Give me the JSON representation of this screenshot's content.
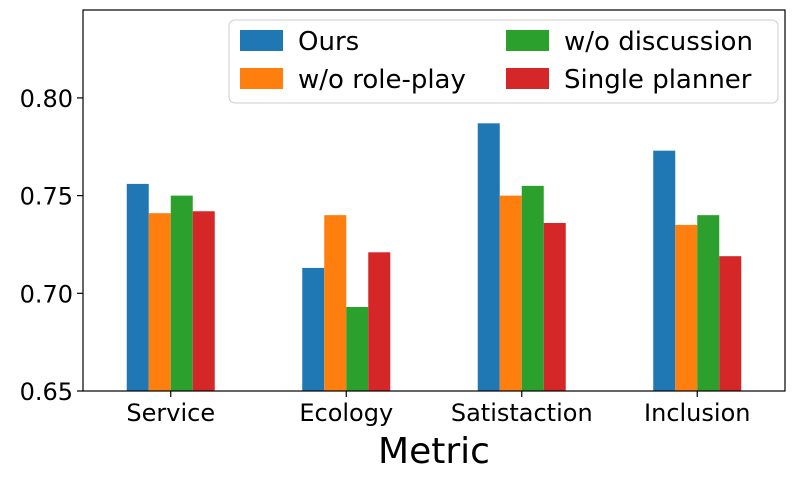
{
  "chart_data": {
    "type": "bar",
    "title": "",
    "xlabel": "Metric",
    "ylabel": "",
    "categories": [
      "Service",
      "Ecology",
      "Satistaction",
      "Inclusion"
    ],
    "ylim": [
      0.65,
      0.845
    ],
    "yticks": [
      "0.65",
      "0.70",
      "0.75",
      "0.80"
    ],
    "yticks_values": [
      0.65,
      0.7,
      0.75,
      0.8
    ],
    "grid": false,
    "legend": {
      "placement": "top-right",
      "columns": 2
    },
    "series": [
      {
        "name": "Ours",
        "color": "#1f77b4",
        "values": [
          0.756,
          0.713,
          0.787,
          0.773
        ]
      },
      {
        "name": "w/o role-play",
        "color": "#ff7f0e",
        "values": [
          0.741,
          0.74,
          0.75,
          0.735
        ]
      },
      {
        "name": "w/o discussion",
        "color": "#2ca02c",
        "values": [
          0.75,
          0.693,
          0.755,
          0.74
        ]
      },
      {
        "name": "Single planner",
        "color": "#d62728",
        "values": [
          0.742,
          0.721,
          0.736,
          0.719
        ]
      }
    ]
  }
}
